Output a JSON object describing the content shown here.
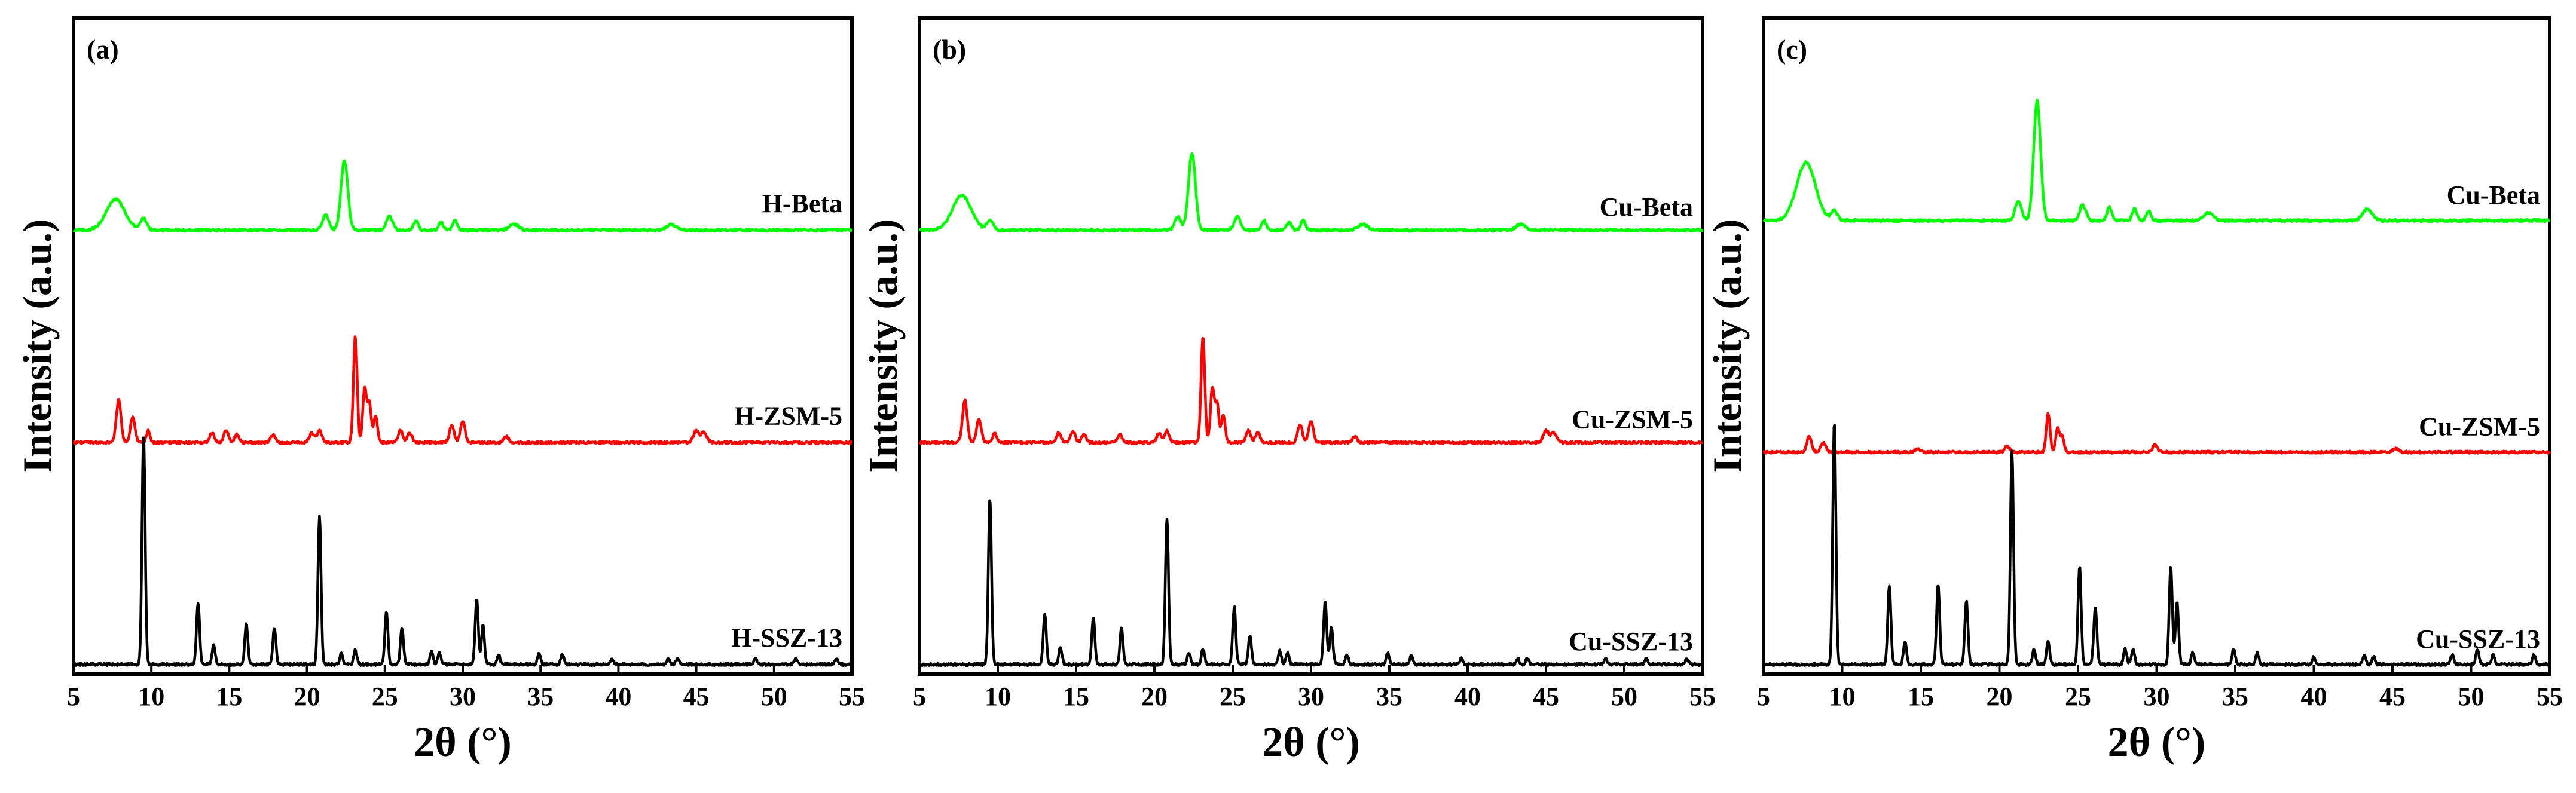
{
  "figure": {
    "xlabel": "2θ (°)",
    "ylabel": "Intensity (a.u.)",
    "xticks": [
      5,
      10,
      15,
      20,
      25,
      30,
      35,
      40,
      45,
      50,
      55
    ]
  },
  "chart_data": [
    {
      "type": "line",
      "panel_label": "(a)",
      "xlabel": "2θ (°)",
      "ylabel": "Intensity (a.u.)",
      "xlim": [
        5,
        55
      ],
      "ylim": [
        0,
        3.4
      ],
      "grid": false,
      "series": [
        {
          "name": "H-Beta",
          "color": "#00ff00",
          "baseline": 2.3,
          "peaks": [
            [
              7.7,
              0.16,
              0.6
            ],
            [
              9.5,
              0.06,
              0.2
            ],
            [
              21.2,
              0.08,
              0.2
            ],
            [
              22.4,
              0.36,
              0.22
            ],
            [
              25.3,
              0.07,
              0.2
            ],
            [
              27.0,
              0.05,
              0.15
            ],
            [
              28.6,
              0.04,
              0.15
            ],
            [
              29.5,
              0.05,
              0.15
            ],
            [
              33.3,
              0.03,
              0.3
            ],
            [
              43.4,
              0.03,
              0.3
            ]
          ]
        },
        {
          "name": "H-ZSM-5",
          "color": "#ff0000",
          "baseline": 1.2,
          "peaks": [
            [
              7.9,
              0.22,
              0.15
            ],
            [
              8.8,
              0.13,
              0.15
            ],
            [
              9.8,
              0.06,
              0.12
            ],
            [
              13.9,
              0.05,
              0.15
            ],
            [
              14.8,
              0.06,
              0.15
            ],
            [
              15.5,
              0.04,
              0.15
            ],
            [
              17.8,
              0.04,
              0.15
            ],
            [
              20.3,
              0.05,
              0.15
            ],
            [
              20.8,
              0.06,
              0.15
            ],
            [
              23.1,
              0.55,
              0.12
            ],
            [
              23.7,
              0.28,
              0.12
            ],
            [
              24.0,
              0.2,
              0.12
            ],
            [
              24.4,
              0.14,
              0.12
            ],
            [
              26.0,
              0.06,
              0.15
            ],
            [
              26.6,
              0.05,
              0.15
            ],
            [
              29.3,
              0.09,
              0.15
            ],
            [
              30.0,
              0.11,
              0.15
            ],
            [
              32.8,
              0.03,
              0.15
            ],
            [
              45.0,
              0.06,
              0.18
            ],
            [
              45.5,
              0.05,
              0.18
            ]
          ]
        },
        {
          "name": "H-SSZ-13",
          "color": "#000000",
          "baseline": 0.05,
          "peaks": [
            [
              9.5,
              1.2,
              0.1
            ],
            [
              13.0,
              0.32,
              0.1
            ],
            [
              14.0,
              0.1,
              0.1
            ],
            [
              16.1,
              0.21,
              0.1
            ],
            [
              17.9,
              0.19,
              0.1
            ],
            [
              20.8,
              0.77,
              0.1
            ],
            [
              22.2,
              0.06,
              0.1
            ],
            [
              23.1,
              0.08,
              0.1
            ],
            [
              25.1,
              0.27,
              0.1
            ],
            [
              26.1,
              0.19,
              0.1
            ],
            [
              28.0,
              0.07,
              0.1
            ],
            [
              28.5,
              0.06,
              0.1
            ],
            [
              30.9,
              0.34,
              0.1
            ],
            [
              31.3,
              0.2,
              0.1
            ],
            [
              32.3,
              0.05,
              0.1
            ],
            [
              34.9,
              0.06,
              0.1
            ],
            [
              36.4,
              0.05,
              0.1
            ],
            [
              39.6,
              0.03,
              0.1
            ],
            [
              43.2,
              0.03,
              0.1
            ],
            [
              43.8,
              0.03,
              0.1
            ],
            [
              48.8,
              0.03,
              0.1
            ],
            [
              51.4,
              0.03,
              0.1
            ],
            [
              54.0,
              0.03,
              0.1
            ]
          ]
        }
      ]
    },
    {
      "type": "line",
      "panel_label": "(b)",
      "xlabel": "2θ (°)",
      "ylabel": "Intensity (a.u.)",
      "xlim": [
        5,
        55
      ],
      "ylim": [
        0,
        3.4
      ],
      "grid": false,
      "series": [
        {
          "name": "Cu-Beta",
          "color": "#00ff00",
          "baseline": 2.3,
          "peaks": [
            [
              7.7,
              0.18,
              0.6
            ],
            [
              9.5,
              0.05,
              0.2
            ],
            [
              21.5,
              0.07,
              0.2
            ],
            [
              22.4,
              0.4,
              0.22
            ],
            [
              25.3,
              0.07,
              0.2
            ],
            [
              27.0,
              0.05,
              0.15
            ],
            [
              28.6,
              0.04,
              0.15
            ],
            [
              29.5,
              0.05,
              0.15
            ],
            [
              33.3,
              0.03,
              0.3
            ],
            [
              43.4,
              0.03,
              0.3
            ]
          ]
        },
        {
          "name": "Cu-ZSM-5",
          "color": "#ff0000",
          "baseline": 1.2,
          "peaks": [
            [
              7.9,
              0.22,
              0.15
            ],
            [
              8.8,
              0.12,
              0.15
            ],
            [
              9.8,
              0.05,
              0.12
            ],
            [
              13.9,
              0.05,
              0.15
            ],
            [
              14.8,
              0.06,
              0.15
            ],
            [
              15.5,
              0.04,
              0.15
            ],
            [
              17.8,
              0.04,
              0.15
            ],
            [
              20.3,
              0.05,
              0.15
            ],
            [
              20.8,
              0.06,
              0.15
            ],
            [
              23.1,
              0.55,
              0.12
            ],
            [
              23.7,
              0.28,
              0.12
            ],
            [
              24.0,
              0.2,
              0.12
            ],
            [
              24.4,
              0.14,
              0.12
            ],
            [
              26.0,
              0.06,
              0.15
            ],
            [
              26.6,
              0.05,
              0.15
            ],
            [
              29.3,
              0.09,
              0.15
            ],
            [
              30.0,
              0.11,
              0.15
            ],
            [
              32.8,
              0.03,
              0.15
            ],
            [
              45.0,
              0.06,
              0.18
            ],
            [
              45.5,
              0.05,
              0.18
            ]
          ]
        },
        {
          "name": "Cu-SSZ-13",
          "color": "#000000",
          "baseline": 0.05,
          "peaks": [
            [
              9.5,
              0.86,
              0.1
            ],
            [
              13.0,
              0.26,
              0.1
            ],
            [
              14.0,
              0.09,
              0.1
            ],
            [
              16.1,
              0.24,
              0.1
            ],
            [
              17.9,
              0.19,
              0.1
            ],
            [
              20.8,
              0.76,
              0.1
            ],
            [
              22.2,
              0.06,
              0.1
            ],
            [
              23.1,
              0.08,
              0.1
            ],
            [
              25.1,
              0.3,
              0.1
            ],
            [
              26.1,
              0.15,
              0.1
            ],
            [
              28.0,
              0.07,
              0.1
            ],
            [
              28.5,
              0.06,
              0.1
            ],
            [
              30.9,
              0.33,
              0.1
            ],
            [
              31.3,
              0.19,
              0.1
            ],
            [
              32.3,
              0.05,
              0.1
            ],
            [
              34.9,
              0.06,
              0.1
            ],
            [
              36.4,
              0.05,
              0.1
            ],
            [
              39.6,
              0.03,
              0.1
            ],
            [
              43.2,
              0.03,
              0.1
            ],
            [
              43.8,
              0.03,
              0.1
            ],
            [
              48.8,
              0.03,
              0.1
            ],
            [
              51.4,
              0.03,
              0.1
            ],
            [
              54.0,
              0.03,
              0.1
            ]
          ]
        }
      ]
    },
    {
      "type": "line",
      "panel_label": "(c)",
      "xlabel": "2θ (°)",
      "ylabel": "Intensity (a.u.)",
      "xlim": [
        5,
        55
      ],
      "ylim": [
        0,
        3.4
      ],
      "grid": false,
      "series": [
        {
          "name": "Cu-Beta",
          "color": "#00ff00",
          "baseline": 2.35,
          "peaks": [
            [
              7.7,
              0.3,
              0.6
            ],
            [
              9.5,
              0.05,
              0.2
            ],
            [
              21.2,
              0.1,
              0.2
            ],
            [
              22.4,
              0.62,
              0.22
            ],
            [
              25.3,
              0.08,
              0.2
            ],
            [
              27.0,
              0.07,
              0.15
            ],
            [
              28.6,
              0.06,
              0.15
            ],
            [
              29.5,
              0.05,
              0.15
            ],
            [
              33.3,
              0.04,
              0.3
            ],
            [
              43.4,
              0.06,
              0.3
            ]
          ]
        },
        {
          "name": "Cu-ZSM-5",
          "color": "#ff0000",
          "baseline": 1.15,
          "peaks": [
            [
              7.9,
              0.08,
              0.15
            ],
            [
              8.8,
              0.05,
              0.15
            ],
            [
              14.8,
              0.02,
              0.15
            ],
            [
              20.5,
              0.03,
              0.15
            ],
            [
              23.1,
              0.2,
              0.12
            ],
            [
              23.7,
              0.12,
              0.12
            ],
            [
              24.0,
              0.08,
              0.12
            ],
            [
              29.9,
              0.04,
              0.15
            ],
            [
              45.2,
              0.02,
              0.18
            ]
          ]
        },
        {
          "name": "Cu-SSZ-13",
          "color": "#000000",
          "baseline": 0.05,
          "peaks": [
            [
              9.5,
              1.26,
              0.1
            ],
            [
              13.0,
              0.41,
              0.1
            ],
            [
              14.0,
              0.12,
              0.1
            ],
            [
              16.1,
              0.41,
              0.1
            ],
            [
              17.9,
              0.33,
              0.1
            ],
            [
              20.8,
              1.11,
              0.1
            ],
            [
              22.2,
              0.08,
              0.1
            ],
            [
              23.1,
              0.12,
              0.1
            ],
            [
              25.1,
              0.51,
              0.1
            ],
            [
              26.1,
              0.3,
              0.1
            ],
            [
              28.0,
              0.08,
              0.1
            ],
            [
              28.5,
              0.08,
              0.1
            ],
            [
              30.9,
              0.51,
              0.1
            ],
            [
              31.3,
              0.32,
              0.1
            ],
            [
              32.3,
              0.06,
              0.1
            ],
            [
              34.9,
              0.08,
              0.1
            ],
            [
              36.4,
              0.06,
              0.1
            ],
            [
              40.0,
              0.04,
              0.1
            ],
            [
              43.2,
              0.05,
              0.1
            ],
            [
              43.8,
              0.04,
              0.1
            ],
            [
              48.8,
              0.05,
              0.1
            ],
            [
              50.4,
              0.08,
              0.1
            ],
            [
              51.4,
              0.05,
              0.1
            ],
            [
              54.0,
              0.05,
              0.1
            ]
          ]
        }
      ]
    }
  ]
}
